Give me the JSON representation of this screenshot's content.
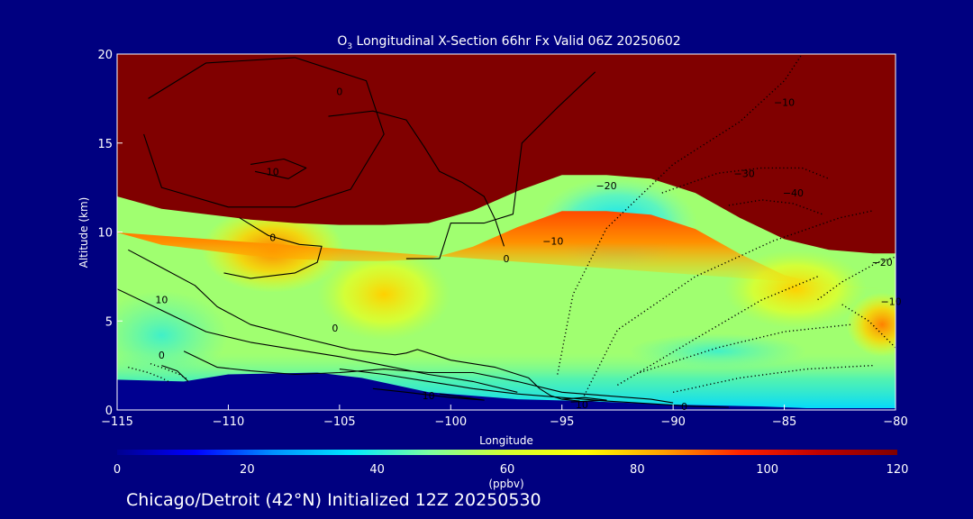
{
  "chart_data": {
    "type": "heatmap",
    "title_prefix": "O",
    "title_subscript": "3",
    "title_rest": " Longitudinal X-Section 66hr  Fx Valid 06Z 20250602",
    "xlabel": "Longitude",
    "ylabel": "Altitude (km)",
    "xlim": [
      -115,
      -80
    ],
    "ylim": [
      0,
      20
    ],
    "x_ticks": [
      -115,
      -110,
      -105,
      -100,
      -95,
      -90,
      -85,
      -80
    ],
    "x_tick_labels": [
      "−115",
      "−110",
      "−105",
      "−100",
      "−95",
      "−90",
      "−85",
      "−80"
    ],
    "y_ticks": [
      0,
      5,
      10,
      15,
      20
    ],
    "y_tick_labels": [
      "0",
      "5",
      "10",
      "15",
      "20"
    ],
    "colorbar": {
      "label": "(ppbv)",
      "range": [
        0,
        120
      ],
      "ticks": [
        0,
        20,
        40,
        60,
        80,
        100,
        120
      ],
      "tick_labels": [
        "0",
        "20",
        "40",
        "60",
        "80",
        "100",
        "120"
      ],
      "stops": [
        "#000090",
        "#0000ff",
        "#0090ff",
        "#00e8ff",
        "#7dffa0",
        "#d6ff30",
        "#ffff00",
        "#ffa000",
        "#ff2000",
        "#c00000",
        "#800000"
      ]
    },
    "shaded_field": {
      "tropopause_km": {
        "lon": [
          -115,
          -113,
          -111,
          -109,
          -107,
          -105,
          -103,
          -101,
          -99,
          -97,
          -95,
          -93,
          -91,
          -89,
          -87,
          -85,
          -83,
          -81,
          -80
        ],
        "alt": [
          12.0,
          11.3,
          11.0,
          10.7,
          10.5,
          10.4,
          10.4,
          10.5,
          11.2,
          12.3,
          13.2,
          13.2,
          13.0,
          12.2,
          10.8,
          9.6,
          9.0,
          8.8,
          8.8
        ]
      },
      "surface_km": {
        "lon": [
          -115,
          -112,
          -110,
          -106,
          -104,
          -101,
          -97,
          -94,
          -90,
          -86,
          -84,
          -80
        ],
        "alt": [
          1.7,
          1.6,
          2.0,
          2.1,
          1.8,
          1.0,
          0.6,
          0.5,
          0.3,
          0.2,
          0.1,
          0.1
        ]
      },
      "features": [
        {
          "label": "upper-trop maximum",
          "lon": -108,
          "alt": 8.7,
          "value": 92
        },
        {
          "label": "lower-trop maximum east",
          "lon": -80.8,
          "alt": 4.8,
          "value": 85
        },
        {
          "label": "upper-trop minimum",
          "lon": -92,
          "alt": 11.2,
          "value": 45
        }
      ]
    },
    "contours": [
      {
        "style": "solid",
        "lon": [
          -113.6,
          -111,
          -107,
          -103.8,
          -103,
          -104.5,
          -107,
          -110,
          -113,
          -113.8
        ],
        "alt": [
          17.5,
          19.5,
          19.8,
          18.5,
          15.5,
          12.4,
          11.4,
          11.4,
          12.5,
          15.5
        ]
      },
      {
        "style": "solid",
        "lon": [
          -109,
          -107.5,
          -106.5,
          -107.3,
          -108.8
        ],
        "alt": [
          13.8,
          14.1,
          13.6,
          13.0,
          13.4
        ]
      },
      {
        "style": "solid",
        "lon": [
          -114.5,
          -113,
          -111.5,
          -110.5,
          -109,
          -106.5,
          -104.5,
          -102.5,
          -102,
          -101.5,
          -100,
          -98,
          -96.5,
          -96,
          -95.5,
          -95,
          -94.2
        ],
        "alt": [
          9.0,
          8.0,
          7.0,
          5.8,
          4.8,
          4.0,
          3.4,
          3.1,
          3.2,
          3.4,
          2.8,
          2.4,
          1.8,
          1.2,
          0.8,
          0.6,
          0.5
        ]
      },
      {
        "style": "solid",
        "lon": [
          -115,
          -113,
          -111,
          -109,
          -107,
          -105,
          -103,
          -101,
          -99,
          -97
        ],
        "alt": [
          6.8,
          5.6,
          4.4,
          3.8,
          3.4,
          3.0,
          2.5,
          2.0,
          1.6,
          1.0
        ]
      },
      {
        "style": "solid",
        "lon": [
          -112,
          -110.5,
          -109,
          -107,
          -105,
          -103,
          -101,
          -99,
          -97,
          -95,
          -93,
          -91,
          -90
        ],
        "alt": [
          3.3,
          2.4,
          2.2,
          2.0,
          2.1,
          2.3,
          2.1,
          2.1,
          1.6,
          1.0,
          0.8,
          0.6,
          0.4
        ]
      },
      {
        "style": "solid",
        "lon": [
          -113,
          -112.3,
          -111.8
        ],
        "alt": [
          2.5,
          2.2,
          1.6
        ]
      },
      {
        "style": "solid",
        "lon": [
          -105,
          -103,
          -101,
          -99,
          -97,
          -95,
          -93,
          -91,
          -89,
          -87.5
        ],
        "alt": [
          2.3,
          2.0,
          1.6,
          1.2,
          0.9,
          0.7,
          0.5,
          0.35,
          0.2,
          0.15
        ]
      },
      {
        "style": "solid",
        "lon": [
          -103.5,
          -102,
          -100,
          -98.5,
          -100.5
        ],
        "alt": [
          1.2,
          1.0,
          0.7,
          0.55,
          0.9
        ]
      },
      {
        "style": "solid",
        "lon": [
          -95,
          -94,
          -93,
          -94.6
        ],
        "alt": [
          0.6,
          0.7,
          0.55,
          0.45
        ]
      },
      {
        "style": "solid",
        "lon": [
          -109.5,
          -108.2,
          -106.8,
          -105.8,
          -106,
          -107,
          -109,
          -110.2
        ],
        "alt": [
          10.8,
          9.8,
          9.3,
          9.2,
          8.3,
          7.7,
          7.4,
          7.7
        ]
      },
      {
        "style": "solid",
        "lon": [
          -102,
          -100.5,
          -100,
          -98.5,
          -97.2,
          -96.8,
          -95.2,
          -93.5
        ],
        "alt": [
          8.5,
          8.5,
          10.5,
          10.5,
          11.0,
          15.0,
          17.0,
          19.0
        ]
      },
      {
        "style": "solid",
        "lon": [
          -105.5,
          -103.5,
          -102,
          -101.2,
          -100.5,
          -99.5,
          -98.5,
          -98,
          -97.6
        ],
        "alt": [
          16.5,
          16.8,
          16.3,
          14.8,
          13.4,
          12.8,
          12.0,
          10.7,
          9.2
        ]
      },
      {
        "style": "dotted",
        "lon": [
          -95.2,
          -94.5,
          -93,
          -90,
          -87,
          -85,
          -84.2
        ],
        "alt": [
          2.0,
          6.5,
          10.2,
          13.8,
          16.2,
          18.5,
          20.0
        ]
      },
      {
        "style": "dotted",
        "lon": [
          -94,
          -92.5,
          -89,
          -85.5,
          -82.5,
          -81
        ],
        "alt": [
          0.8,
          4.5,
          7.5,
          9.5,
          10.8,
          11.2
        ]
      },
      {
        "style": "dotted",
        "lon": [
          -92.5,
          -89,
          -86,
          -83.5
        ],
        "alt": [
          1.4,
          4.0,
          6.2,
          7.5
        ]
      },
      {
        "style": "dotted",
        "lon": [
          -91.5,
          -88,
          -85,
          -82
        ],
        "alt": [
          2.1,
          3.5,
          4.4,
          4.8
        ]
      },
      {
        "style": "dotted",
        "lon": [
          -90,
          -87,
          -84,
          -81
        ],
        "alt": [
          1.0,
          1.8,
          2.3,
          2.5
        ]
      },
      {
        "style": "dotted",
        "lon": [
          -90.5,
          -88,
          -86,
          -84.2,
          -83
        ],
        "alt": [
          12.2,
          13.3,
          13.6,
          13.6,
          13.0
        ]
      },
      {
        "style": "dotted",
        "lon": [
          -87.5,
          -86,
          -84.6,
          -83.3
        ],
        "alt": [
          11.5,
          11.8,
          11.6,
          11.0
        ]
      },
      {
        "style": "dotted",
        "lon": [
          -80,
          -81.2,
          -82.5
        ],
        "alt": [
          3.5,
          5.0,
          6.0
        ]
      },
      {
        "style": "dotted",
        "lon": [
          -83.5,
          -82.4,
          -80.8,
          -80
        ],
        "alt": [
          6.2,
          7.2,
          8.3,
          8.6
        ]
      },
      {
        "style": "dotted",
        "lon": [
          -113.5,
          -112.8,
          -112.2,
          -111.8
        ],
        "alt": [
          2.6,
          2.3,
          2.0,
          1.7
        ]
      },
      {
        "style": "dotted",
        "lon": [
          -114.5,
          -113.6,
          -113,
          -112.7
        ],
        "alt": [
          2.4,
          2.1,
          1.8,
          1.6
        ]
      }
    ],
    "contour_labels": [
      {
        "text": "0",
        "lon": -105.0,
        "alt": 17.9
      },
      {
        "text": "10",
        "lon": -108.0,
        "alt": 13.4
      },
      {
        "text": "0",
        "lon": -108.0,
        "alt": 9.7
      },
      {
        "text": "0",
        "lon": -97.5,
        "alt": 8.5
      },
      {
        "text": "10",
        "lon": -113.0,
        "alt": 6.2
      },
      {
        "text": "0",
        "lon": -105.2,
        "alt": 4.6
      },
      {
        "text": "0",
        "lon": -113.0,
        "alt": 3.1
      },
      {
        "text": "10",
        "lon": -101.0,
        "alt": 0.8
      },
      {
        "text": "10",
        "lon": -94.1,
        "alt": 0.3
      },
      {
        "text": "0",
        "lon": -89.5,
        "alt": 0.2
      },
      {
        "text": "−10",
        "lon": -95.4,
        "alt": 9.5
      },
      {
        "text": "−20",
        "lon": -93.0,
        "alt": 12.6
      },
      {
        "text": "−10",
        "lon": -85.0,
        "alt": 17.3
      },
      {
        "text": "−30",
        "lon": -86.8,
        "alt": 13.3
      },
      {
        "text": "−40",
        "lon": -84.6,
        "alt": 12.2
      },
      {
        "text": "−20",
        "lon": -80.6,
        "alt": 8.3
      },
      {
        "text": "−10",
        "lon": -80.2,
        "alt": 6.1
      }
    ]
  },
  "footer": {
    "location_text": "Chicago/Detroit (42°N) Initialized 12Z 20250530"
  }
}
